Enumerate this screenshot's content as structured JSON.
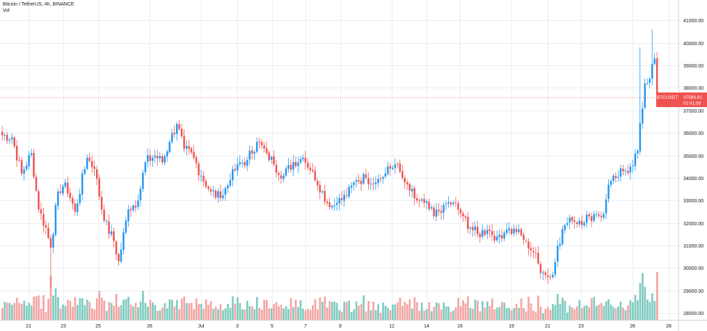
{
  "header": {
    "symbol_line": "Bitcoin / TetherUS, 4h, BINANCE",
    "volume_label": "Vol"
  },
  "price_tag": {
    "symbol": "BTCUSDT",
    "price": "37580.81",
    "countdown": "02:41:55"
  },
  "colors": {
    "up": "#2196f3",
    "down": "#ef5350",
    "vol_up": "#7fcbc0",
    "vol_down": "#f4a5a3",
    "grid": "#e9edf3",
    "axis_text": "#131722",
    "price_line": "#ef5350"
  },
  "chart_data": {
    "type": "candlestick",
    "timeframe": "4h",
    "ylim": [
      27700,
      41900
    ],
    "y_ticks": [
      28000,
      29000,
      30000,
      31000,
      32000,
      33000,
      34000,
      35000,
      36000,
      37000,
      38000,
      39000,
      40000,
      41000
    ],
    "y_tick_labels": [
      "28000.00",
      "29000.00",
      "30000.00",
      "31000.00",
      "32000.00",
      "33000.00",
      "34000.00",
      "35000.00",
      "36000.00",
      "37000.00",
      "38000.00",
      "39000.00",
      "40000.00",
      "41000.00"
    ],
    "x_ticks": [
      "21",
      "23",
      "25",
      "28",
      "Jul",
      "3",
      "5",
      "7",
      "9",
      "12",
      "14",
      "16",
      "19",
      "21",
      "23",
      "26",
      "28"
    ],
    "last_price": 37580.81,
    "waypoints": [
      [
        0,
        35900
      ],
      [
        4,
        35800
      ],
      [
        8,
        34200
      ],
      [
        12,
        35100
      ],
      [
        15,
        32600
      ],
      [
        18,
        31800
      ],
      [
        20,
        30900
      ],
      [
        23,
        33400
      ],
      [
        26,
        33800
      ],
      [
        30,
        32500
      ],
      [
        35,
        34900
      ],
      [
        38,
        34400
      ],
      [
        42,
        32100
      ],
      [
        46,
        31200
      ],
      [
        48,
        30300
      ],
      [
        52,
        32600
      ],
      [
        56,
        33000
      ],
      [
        59,
        34700
      ],
      [
        63,
        35000
      ],
      [
        66,
        34700
      ],
      [
        69,
        35600
      ],
      [
        72,
        36400
      ],
      [
        75,
        35300
      ],
      [
        79,
        34900
      ],
      [
        82,
        34100
      ],
      [
        86,
        33400
      ],
      [
        90,
        33100
      ],
      [
        94,
        33900
      ],
      [
        97,
        34600
      ],
      [
        101,
        34800
      ],
      [
        105,
        35600
      ],
      [
        109,
        35100
      ],
      [
        112,
        34600
      ],
      [
        116,
        34100
      ],
      [
        120,
        34700
      ],
      [
        124,
        34900
      ],
      [
        128,
        34300
      ],
      [
        132,
        33400
      ],
      [
        135,
        32700
      ],
      [
        138,
        32900
      ],
      [
        142,
        33200
      ],
      [
        146,
        33900
      ],
      [
        150,
        34000
      ],
      [
        154,
        33800
      ],
      [
        158,
        34200
      ],
      [
        162,
        34600
      ],
      [
        166,
        33800
      ],
      [
        170,
        33100
      ],
      [
        174,
        32900
      ],
      [
        178,
        32300
      ],
      [
        182,
        32800
      ],
      [
        186,
        32900
      ],
      [
        190,
        32300
      ],
      [
        193,
        31800
      ],
      [
        196,
        31500
      ],
      [
        200,
        31700
      ],
      [
        204,
        31400
      ],
      [
        208,
        31700
      ],
      [
        212,
        31600
      ],
      [
        216,
        31200
      ],
      [
        219,
        30700
      ],
      [
        221,
        30200
      ],
      [
        223,
        29800
      ],
      [
        225,
        29600
      ],
      [
        227,
        29700
      ],
      [
        229,
        31000
      ],
      [
        232,
        31900
      ],
      [
        235,
        32100
      ],
      [
        238,
        32100
      ],
      [
        242,
        32300
      ],
      [
        245,
        32400
      ],
      [
        248,
        32400
      ],
      [
        250,
        33700
      ],
      [
        253,
        34000
      ],
      [
        256,
        34300
      ],
      [
        259,
        34500
      ],
      [
        262,
        35200
      ],
      [
        265,
        38200
      ],
      [
        267,
        38400
      ],
      [
        269,
        39300
      ],
      [
        270,
        37580.81
      ]
    ],
    "events": [
      {
        "i": 20,
        "low": 29100,
        "vol": 4.5
      },
      {
        "i": 263,
        "high": 39800
      },
      {
        "i": 268,
        "high": 40600
      },
      {
        "i": 264,
        "vol": 4.0
      },
      {
        "i": 48,
        "low": 30100
      },
      {
        "i": 225,
        "low": 29300
      }
    ]
  }
}
